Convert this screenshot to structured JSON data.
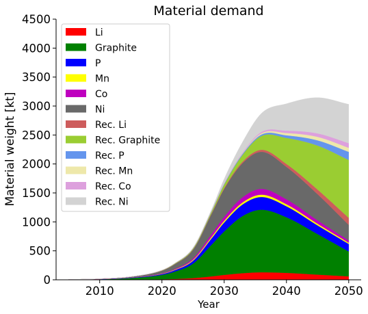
{
  "chart_data": {
    "type": "area",
    "title": "Material demand",
    "xlabel": "Year",
    "ylabel": "Material weight [kt]",
    "xlim": [
      2003,
      2052
    ],
    "ylim": [
      0,
      4500
    ],
    "xticks": [
      2010,
      2020,
      2030,
      2040,
      2050
    ],
    "yticks": [
      0,
      500,
      1000,
      1500,
      2000,
      2500,
      3000,
      3500,
      4000,
      4500
    ],
    "grid": false,
    "legend_position": "top-left",
    "stacked": true,
    "x": [
      2005,
      2010,
      2015,
      2020,
      2022,
      2025,
      2028,
      2030,
      2033,
      2036,
      2040,
      2045,
      2050
    ],
    "series": [
      {
        "name": "Li",
        "color": "#ff0000",
        "values": [
          1,
          2,
          5,
          10,
          15,
          30,
          60,
          85,
          115,
          130,
          120,
          90,
          60
        ]
      },
      {
        "name": "Graphite",
        "color": "#008000",
        "values": [
          2,
          7,
          25,
          75,
          125,
          250,
          550,
          750,
          990,
          1080,
          960,
          700,
          430
        ]
      },
      {
        "name": "P",
        "color": "#0000ff",
        "values": [
          1,
          3,
          7,
          15,
          25,
          50,
          110,
          155,
          200,
          220,
          190,
          150,
          130
        ]
      },
      {
        "name": "Mn",
        "color": "#ffff00",
        "values": [
          0,
          1,
          2,
          5,
          8,
          15,
          25,
          30,
          35,
          40,
          35,
          28,
          20
        ]
      },
      {
        "name": "Co",
        "color": "#bf00bf",
        "values": [
          0,
          1,
          3,
          8,
          12,
          25,
          50,
          70,
          90,
          100,
          85,
          60,
          40
        ]
      },
      {
        "name": "Ni",
        "color": "#696969",
        "values": [
          1,
          4,
          12,
          45,
          80,
          150,
          350,
          480,
          590,
          640,
          560,
          450,
          270
        ]
      },
      {
        "name": "Rec. Li",
        "color": "#cd5c5c",
        "values": [
          0,
          0,
          0,
          2,
          3,
          5,
          10,
          15,
          25,
          35,
          50,
          80,
          120
        ]
      },
      {
        "name": "Rec. Graphite",
        "color": "#9acd32",
        "values": [
          0,
          0,
          0,
          5,
          8,
          15,
          30,
          60,
          120,
          240,
          450,
          760,
          1000
        ]
      },
      {
        "name": "Rec. P",
        "color": "#6495ed",
        "values": [
          0,
          0,
          0,
          1,
          2,
          4,
          8,
          12,
          18,
          25,
          45,
          90,
          140
        ]
      },
      {
        "name": "Rec. Mn",
        "color": "#eee8aa",
        "values": [
          0,
          0,
          0,
          0,
          1,
          2,
          4,
          6,
          10,
          20,
          40,
          60,
          70
        ]
      },
      {
        "name": "Rec. Co",
        "color": "#dda0dd",
        "values": [
          0,
          0,
          0,
          0,
          1,
          2,
          4,
          8,
          15,
          25,
          40,
          60,
          80
        ]
      },
      {
        "name": "Rec. Ni",
        "color": "#d3d3d3",
        "values": [
          0,
          0,
          0,
          0,
          2,
          8,
          20,
          70,
          180,
          320,
          465,
          617,
          670
        ]
      }
    ]
  }
}
